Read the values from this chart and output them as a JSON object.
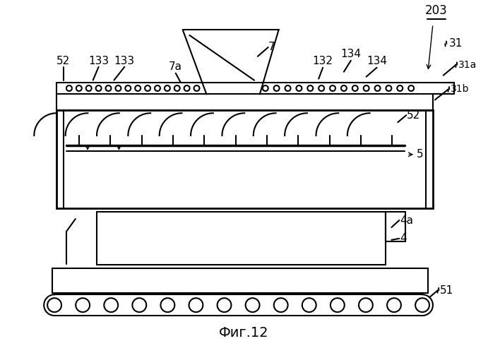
{
  "title": "Фиг.12",
  "label_203": "203",
  "label_31": "31",
  "label_31a": "31a",
  "label_31b": "31b",
  "label_7": "7",
  "label_7a": "7a",
  "label_52_left": "52",
  "label_52_right": "52",
  "label_133_1": "133",
  "label_133_2": "133",
  "label_132": "132",
  "label_134_1": "134",
  "label_134_2": "134",
  "label_5": "5",
  "label_4a": "4a",
  "label_4": "4",
  "label_51": "51",
  "bg_color": "#ffffff",
  "line_color": "#000000",
  "figsize": [
    6.91,
    5.0
  ],
  "dpi": 100
}
